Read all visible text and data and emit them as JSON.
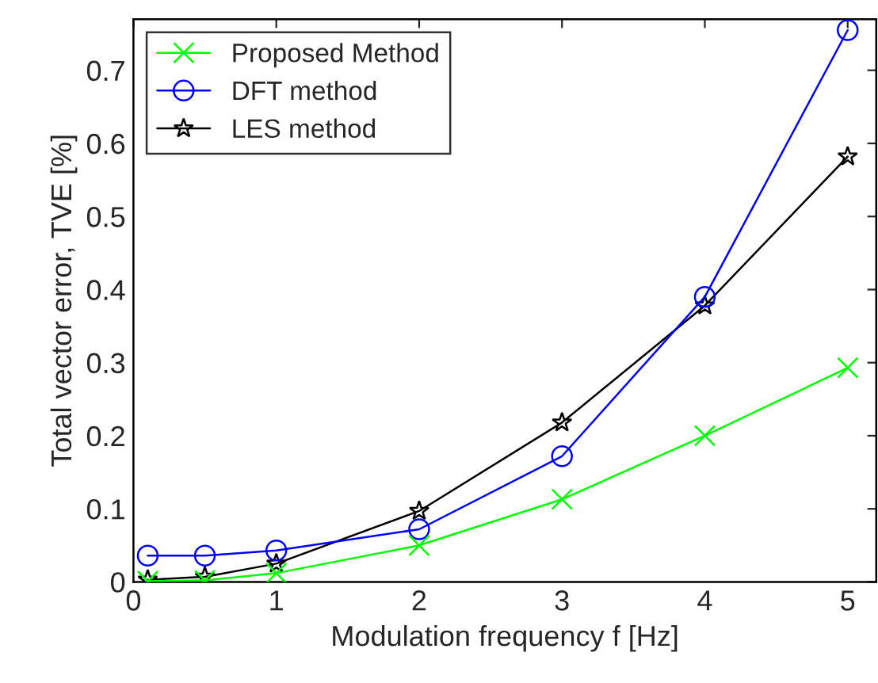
{
  "chart_data": {
    "type": "line",
    "xlabel": "Modulation frequency f [Hz]",
    "ylabel": "Total vector error, TVE [%]",
    "x": [
      0.1,
      0.5,
      1,
      2,
      3,
      4,
      5
    ],
    "series": [
      {
        "name": "Proposed Method",
        "color": "#00ff00",
        "marker": "cross",
        "values": [
          0.001,
          0.002,
          0.012,
          0.05,
          0.113,
          0.2,
          0.293
        ]
      },
      {
        "name": "DFT method",
        "color": "#0000ff",
        "marker": "circle",
        "values": [
          0.036,
          0.036,
          0.043,
          0.072,
          0.172,
          0.39,
          0.755
        ]
      },
      {
        "name": "LES method",
        "color": "#000000",
        "marker": "star",
        "values": [
          0.003,
          0.007,
          0.025,
          0.097,
          0.218,
          0.378,
          0.582
        ]
      }
    ],
    "xlim": [
      0,
      5.2
    ],
    "ylim": [
      0,
      0.77
    ],
    "xticks": [
      0,
      1,
      2,
      3,
      4,
      5
    ],
    "yticks": [
      0,
      0.1,
      0.2,
      0.3,
      0.4,
      0.5,
      0.6,
      0.7
    ],
    "grid": false,
    "legend": "top left",
    "line_style": "solid"
  }
}
